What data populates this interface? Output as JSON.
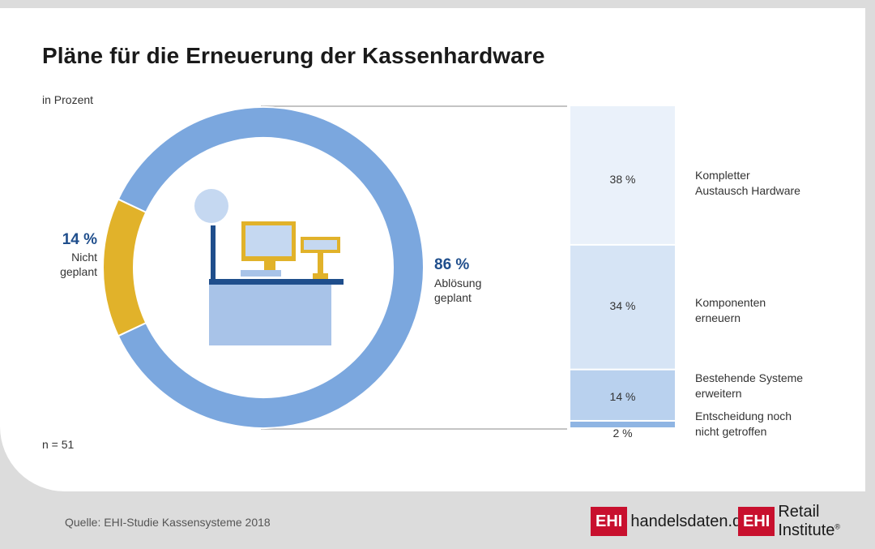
{
  "title": "Pläne für die Erneuerung der Kassenhardware",
  "subtitle": "in Prozent",
  "n_label": "n = 51",
  "source": "Quelle: EHI-Studie Kassensysteme 2018",
  "logos": [
    {
      "mark": "EHI",
      "text": "handelsdaten.de"
    },
    {
      "mark": "EHI",
      "text": "Retail Institute",
      "sup": "®"
    }
  ],
  "colors": {
    "donut_main": "#7ba7de",
    "donut_small": "#e1b22a",
    "pct_text": "#1f4e8c",
    "bar_colors": [
      "#eaf1fa",
      "#d6e4f5",
      "#b9d1ee",
      "#8fb5e3"
    ]
  },
  "icon": "cash-register-icon",
  "chart_data": [
    {
      "type": "pie",
      "style": "donut",
      "slices": [
        {
          "value": 86,
          "label_value": "86 %",
          "label": [
            "Ablösung",
            "geplant"
          ]
        },
        {
          "value": 14,
          "label_value": "14 %",
          "label": [
            "Nicht",
            "geplant"
          ]
        }
      ]
    },
    {
      "type": "bar",
      "orientation": "stacked-vertical",
      "segments": [
        {
          "value": 38,
          "label_value": "38 %",
          "label": [
            "Kompletter",
            "Austausch Hardware"
          ]
        },
        {
          "value": 34,
          "label_value": "34 %",
          "label": [
            "Komponenten",
            "erneuern"
          ]
        },
        {
          "value": 14,
          "label_value": "14 %",
          "label": [
            "Bestehende Systeme",
            "erweitern"
          ]
        },
        {
          "value": 2,
          "label_value": "2 %",
          "label": [
            "Entscheidung noch",
            "nicht getroffen"
          ]
        }
      ]
    }
  ]
}
